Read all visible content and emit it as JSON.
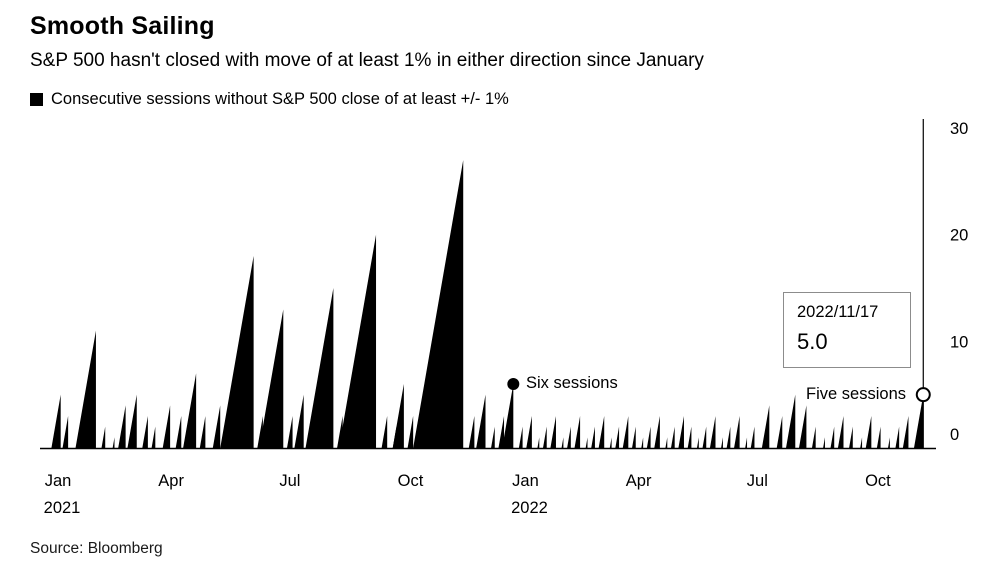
{
  "header": {
    "title": "Smooth Sailing",
    "subtitle": "S&P 500 hasn't closed with move of at least 1% in either direction since January",
    "legend_label": "Consecutive sessions without S&P 500 close of at least +/- 1%"
  },
  "footer": {
    "source": "Source: Bloomberg"
  },
  "colors": {
    "series_fill": "#000000",
    "background": "#ffffff",
    "tooltip_border": "#8c8c8c"
  },
  "chart_data": {
    "type": "area",
    "title": "Smooth Sailing",
    "subtitle": "S&P 500 hasn't closed with move of at least 1% in either direction since January",
    "series_name": "Consecutive sessions without S&P 500 close of at least +/- 1%",
    "ylim": [
      0,
      30
    ],
    "yticks": [
      0,
      10,
      20,
      30
    ],
    "legend_position": "top-left",
    "grid": false,
    "x_axis": {
      "unit": "trading-day index from Jan 2021",
      "total_days": 480,
      "ticks": [
        {
          "day": 0,
          "label": "Jan",
          "sublabel": "2021"
        },
        {
          "day": 61,
          "label": "Apr"
        },
        {
          "day": 125,
          "label": "Jul"
        },
        {
          "day": 190,
          "label": "Oct"
        },
        {
          "day": 252,
          "label": "Jan",
          "sublabel": "2022"
        },
        {
          "day": 313,
          "label": "Apr"
        },
        {
          "day": 377,
          "label": "Jul"
        },
        {
          "day": 442,
          "label": "Oct"
        }
      ]
    },
    "streaks_encoding": "each item is [end_trading_day_index, streak_length]; streak ramps 1 session per day then resets to 0",
    "streaks": [
      [
        9,
        5
      ],
      [
        13,
        3
      ],
      [
        28,
        11
      ],
      [
        33,
        2
      ],
      [
        38,
        1
      ],
      [
        44,
        4
      ],
      [
        50,
        5
      ],
      [
        56,
        3
      ],
      [
        60,
        2
      ],
      [
        68,
        4
      ],
      [
        74,
        3
      ],
      [
        82,
        7
      ],
      [
        87,
        3
      ],
      [
        95,
        4
      ],
      [
        100,
        3
      ],
      [
        106,
        2
      ],
      [
        113,
        18
      ],
      [
        118,
        3
      ],
      [
        129,
        13
      ],
      [
        134,
        3
      ],
      [
        140,
        5
      ],
      [
        145,
        3
      ],
      [
        156,
        15
      ],
      [
        161,
        3
      ],
      [
        166,
        5
      ],
      [
        171,
        2
      ],
      [
        179,
        20
      ],
      [
        185,
        3
      ],
      [
        190,
        2
      ],
      [
        194,
        6
      ],
      [
        199,
        3
      ],
      [
        226,
        27
      ],
      [
        232,
        3
      ],
      [
        238,
        5
      ],
      [
        243,
        2
      ],
      [
        248,
        3
      ],
      [
        253,
        6
      ],
      [
        258,
        2
      ],
      [
        263,
        3
      ],
      [
        267,
        1
      ],
      [
        271,
        2
      ],
      [
        276,
        3
      ],
      [
        280,
        1
      ],
      [
        284,
        2
      ],
      [
        289,
        3
      ],
      [
        293,
        1
      ],
      [
        297,
        2
      ],
      [
        302,
        3
      ],
      [
        306,
        1
      ],
      [
        310,
        2
      ],
      [
        315,
        3
      ],
      [
        319,
        2
      ],
      [
        323,
        1
      ],
      [
        327,
        2
      ],
      [
        332,
        3
      ],
      [
        336,
        1
      ],
      [
        340,
        2
      ],
      [
        345,
        3
      ],
      [
        349,
        2
      ],
      [
        353,
        1
      ],
      [
        357,
        2
      ],
      [
        362,
        3
      ],
      [
        366,
        1
      ],
      [
        370,
        2
      ],
      [
        375,
        3
      ],
      [
        379,
        1
      ],
      [
        383,
        2
      ],
      [
        391,
        4
      ],
      [
        398,
        3
      ],
      [
        405,
        5
      ],
      [
        411,
        4
      ],
      [
        416,
        2
      ],
      [
        421,
        1
      ],
      [
        426,
        2
      ],
      [
        431,
        3
      ],
      [
        436,
        2
      ],
      [
        441,
        1
      ],
      [
        446,
        3
      ],
      [
        451,
        2
      ],
      [
        456,
        1
      ],
      [
        461,
        2
      ],
      [
        466,
        3
      ],
      [
        474,
        5
      ]
    ],
    "annotations": {
      "six_sessions": {
        "label": "Six sessions",
        "day": 253,
        "value": 6
      },
      "five_sessions": {
        "label": "Five sessions",
        "day": 474,
        "value": 5
      },
      "tooltip": {
        "date": "2022/11/17",
        "value": "5.0"
      },
      "crosshair_day": 474
    }
  }
}
